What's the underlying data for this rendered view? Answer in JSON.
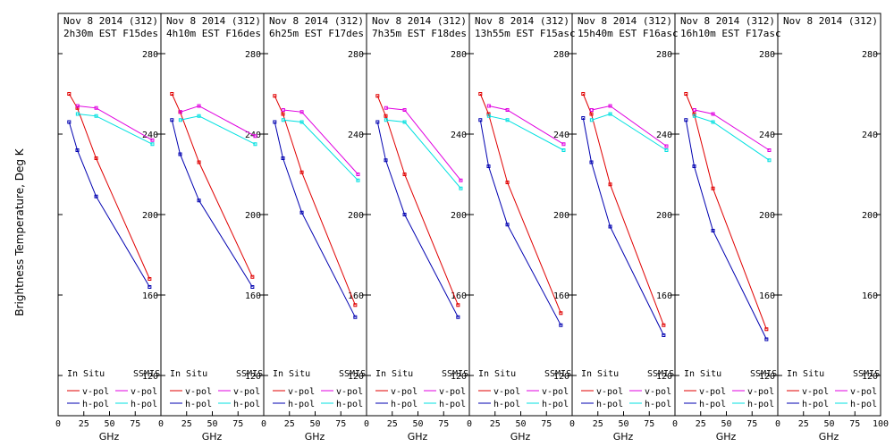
{
  "chart_data": {
    "type": "line",
    "ylabel": "Brightness Temperature, Deg K",
    "xlabel": "GHz",
    "xlim": [
      0,
      100
    ],
    "ylim": [
      100,
      300
    ],
    "x_ticks": [
      "0",
      "25",
      "50",
      "75"
    ],
    "last_x_ticks": [
      "0",
      "25",
      "50",
      "75",
      "100"
    ],
    "y_ticks": [
      120,
      160,
      200,
      240,
      280
    ],
    "legend": {
      "col1": "In Situ",
      "col2": "SSMIS",
      "vpol": "v-pol",
      "hpol": "h-pol"
    },
    "colors": {
      "insitu_v": "#e00000",
      "insitu_h": "#0000b0",
      "ssmis_v": "#e000e0",
      "ssmis_h": "#00e0e0"
    },
    "panels": [
      {
        "title1": "Nov 8 2014 (312)",
        "title2": "2h30m EST F15des",
        "insitu_v": [
          [
            10.7,
            260
          ],
          [
            18.7,
            253
          ],
          [
            37,
            228
          ],
          [
            89,
            168
          ]
        ],
        "insitu_h": [
          [
            10.7,
            246
          ],
          [
            18.7,
            232
          ],
          [
            37,
            209
          ],
          [
            89,
            164
          ]
        ],
        "ssmis_v": [
          [
            19,
            254
          ],
          [
            37,
            253
          ],
          [
            91.7,
            237
          ]
        ],
        "ssmis_h": [
          [
            19,
            250
          ],
          [
            37,
            249
          ],
          [
            91.7,
            235
          ]
        ]
      },
      {
        "title1": "Nov 8 2014 (312)",
        "title2": "4h10m EST F16des",
        "insitu_v": [
          [
            10.7,
            260
          ],
          [
            18.7,
            251
          ],
          [
            37,
            226
          ],
          [
            89,
            169
          ]
        ],
        "insitu_h": [
          [
            10.7,
            247
          ],
          [
            18.7,
            230
          ],
          [
            37,
            207
          ],
          [
            89,
            164
          ]
        ],
        "ssmis_v": [
          [
            19,
            251
          ],
          [
            37,
            254
          ],
          [
            91.7,
            239
          ]
        ],
        "ssmis_h": [
          [
            19,
            247
          ],
          [
            37,
            249
          ],
          [
            91.7,
            235
          ]
        ]
      },
      {
        "title1": "Nov 8 2014 (312)",
        "title2": "6h25m EST F17des",
        "insitu_v": [
          [
            10.7,
            259
          ],
          [
            18.7,
            250
          ],
          [
            37,
            221
          ],
          [
            89,
            155
          ]
        ],
        "insitu_h": [
          [
            10.7,
            246
          ],
          [
            18.7,
            228
          ],
          [
            37,
            201
          ],
          [
            89,
            149
          ]
        ],
        "ssmis_v": [
          [
            19,
            252
          ],
          [
            37,
            251
          ],
          [
            91.7,
            220
          ]
        ],
        "ssmis_h": [
          [
            19,
            247
          ],
          [
            37,
            246
          ],
          [
            91.7,
            217
          ]
        ]
      },
      {
        "title1": "Nov 8 2014 (312)",
        "title2": "7h35m EST F18des",
        "insitu_v": [
          [
            10.7,
            259
          ],
          [
            18.7,
            249
          ],
          [
            37,
            220
          ],
          [
            89,
            155
          ]
        ],
        "insitu_h": [
          [
            10.7,
            246
          ],
          [
            18.7,
            227
          ],
          [
            37,
            200
          ],
          [
            89,
            149
          ]
        ],
        "ssmis_v": [
          [
            19,
            253
          ],
          [
            37,
            252
          ],
          [
            91.7,
            217
          ]
        ],
        "ssmis_h": [
          [
            19,
            247
          ],
          [
            37,
            246
          ],
          [
            91.7,
            213
          ]
        ]
      },
      {
        "title1": "Nov 8 2014 (312)",
        "title2": "13h55m EST F15asc",
        "insitu_v": [
          [
            10.7,
            260
          ],
          [
            18.7,
            250
          ],
          [
            37,
            216
          ],
          [
            89,
            151
          ]
        ],
        "insitu_h": [
          [
            10.7,
            247
          ],
          [
            18.7,
            224
          ],
          [
            37,
            195
          ],
          [
            89,
            145
          ]
        ],
        "ssmis_v": [
          [
            19,
            254
          ],
          [
            37,
            252
          ],
          [
            91.7,
            235
          ]
        ],
        "ssmis_h": [
          [
            19,
            249
          ],
          [
            37,
            247
          ],
          [
            91.7,
            232
          ]
        ]
      },
      {
        "title1": "Nov 8 2014 (312)",
        "title2": "15h40m EST F16asc",
        "insitu_v": [
          [
            10.7,
            260
          ],
          [
            18.7,
            250
          ],
          [
            37,
            215
          ],
          [
            89,
            145
          ]
        ],
        "insitu_h": [
          [
            10.7,
            248
          ],
          [
            18.7,
            226
          ],
          [
            37,
            194
          ],
          [
            89,
            140
          ]
        ],
        "ssmis_v": [
          [
            19,
            252
          ],
          [
            37,
            254
          ],
          [
            91.7,
            234
          ]
        ],
        "ssmis_h": [
          [
            19,
            247
          ],
          [
            37,
            250
          ],
          [
            91.7,
            232
          ]
        ]
      },
      {
        "title1": "Nov 8 2014 (312)",
        "title2": "16h10m EST F17asc",
        "insitu_v": [
          [
            10.7,
            260
          ],
          [
            18.7,
            250
          ],
          [
            37,
            213
          ],
          [
            89,
            143
          ]
        ],
        "insitu_h": [
          [
            10.7,
            247
          ],
          [
            18.7,
            224
          ],
          [
            37,
            192
          ],
          [
            89,
            138
          ]
        ],
        "ssmis_v": [
          [
            19,
            252
          ],
          [
            37,
            250
          ],
          [
            91.7,
            232
          ]
        ],
        "ssmis_h": [
          [
            19,
            249
          ],
          [
            37,
            246
          ],
          [
            91.7,
            227
          ]
        ]
      },
      {
        "title1": "Nov 8 2014 (312)",
        "title2": "",
        "insitu_v": [],
        "insitu_h": [],
        "ssmis_v": [],
        "ssmis_h": []
      }
    ]
  }
}
